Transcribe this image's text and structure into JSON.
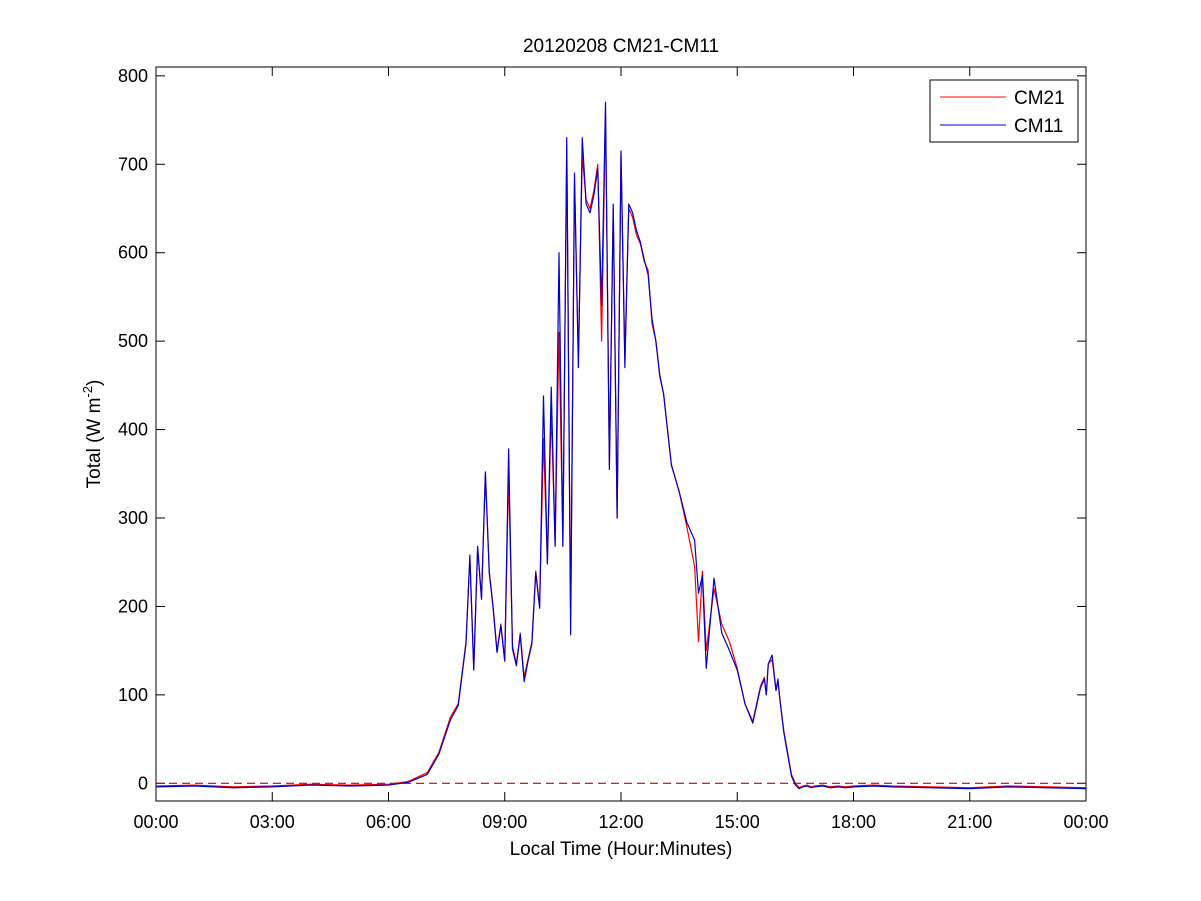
{
  "chart_data": {
    "type": "line",
    "title": "20120208 CM21-CM11",
    "xlabel": "Local Time (Hour:Minutes)",
    "ylabel": "Total (W m",
    "ylabel_sup": "-2",
    "ylabel_end": ")",
    "x_unit": "hours",
    "xlim": [
      0,
      24
    ],
    "ylim": [
      -20,
      810
    ],
    "grid": false,
    "legend_position": "top-right",
    "x_ticks": [
      {
        "value": 0,
        "label": "00:00"
      },
      {
        "value": 3,
        "label": "03:00"
      },
      {
        "value": 6,
        "label": "06:00"
      },
      {
        "value": 9,
        "label": "09:00"
      },
      {
        "value": 12,
        "label": "12:00"
      },
      {
        "value": 15,
        "label": "15:00"
      },
      {
        "value": 18,
        "label": "18:00"
      },
      {
        "value": 21,
        "label": "21:00"
      },
      {
        "value": 24,
        "label": "00:00"
      }
    ],
    "y_ticks": [
      {
        "value": 0,
        "label": "0"
      },
      {
        "value": 100,
        "label": "100"
      },
      {
        "value": 200,
        "label": "200"
      },
      {
        "value": 300,
        "label": "300"
      },
      {
        "value": 400,
        "label": "400"
      },
      {
        "value": 500,
        "label": "500"
      },
      {
        "value": 600,
        "label": "600"
      },
      {
        "value": 700,
        "label": "700"
      },
      {
        "value": 800,
        "label": "800"
      }
    ],
    "reference_line": {
      "y": 0,
      "color": "#cc0000",
      "style": "dashed"
    },
    "series": [
      {
        "name": "CM21",
        "color": "#ff0000",
        "x": [
          0,
          1,
          2,
          3,
          4,
          5,
          6,
          6.5,
          7,
          7.3,
          7.6,
          7.8,
          8.0,
          8.1,
          8.2,
          8.3,
          8.4,
          8.5,
          8.6,
          8.7,
          8.8,
          8.9,
          9.0,
          9.1,
          9.2,
          9.3,
          9.4,
          9.5,
          9.6,
          9.7,
          9.8,
          9.9,
          10.0,
          10.1,
          10.2,
          10.3,
          10.4,
          10.5,
          10.6,
          10.7,
          10.8,
          10.9,
          11.0,
          11.1,
          11.2,
          11.3,
          11.4,
          11.5,
          11.6,
          11.7,
          11.8,
          11.9,
          12.0,
          12.1,
          12.2,
          12.3,
          12.4,
          12.5,
          12.6,
          12.7,
          12.8,
          12.9,
          13.0,
          13.1,
          13.2,
          13.3,
          13.5,
          13.7,
          13.9,
          14.0,
          14.1,
          14.2,
          14.4,
          14.6,
          14.8,
          15.0,
          15.2,
          15.4,
          15.6,
          15.7,
          15.75,
          15.8,
          15.9,
          16.0,
          16.05,
          16.1,
          16.2,
          16.3,
          16.4,
          16.5,
          16.6,
          16.7,
          16.8,
          16.9,
          17.0,
          17.2,
          17.4,
          17.6,
          17.8,
          18.0,
          18.5,
          19,
          20,
          21,
          22,
          23,
          24
        ],
        "values": [
          -3,
          -2,
          -4,
          -3,
          -1,
          -2,
          -1,
          2,
          12,
          35,
          75,
          90,
          160,
          255,
          130,
          265,
          210,
          350,
          240,
          200,
          150,
          180,
          140,
          350,
          155,
          135,
          170,
          120,
          140,
          160,
          240,
          200,
          390,
          250,
          420,
          270,
          510,
          270,
          720,
          190,
          680,
          480,
          710,
          660,
          650,
          670,
          700,
          500,
          760,
          360,
          650,
          300,
          710,
          480,
          650,
          640,
          620,
          610,
          590,
          580,
          520,
          500,
          460,
          440,
          400,
          360,
          330,
          290,
          245,
          160,
          240,
          150,
          220,
          180,
          160,
          130,
          90,
          70,
          110,
          120,
          100,
          135,
          140,
          105,
          115,
          95,
          60,
          35,
          10,
          0,
          -5,
          -3,
          -2,
          -4,
          -3,
          -2,
          -4,
          -3,
          -4,
          -3,
          -2,
          -3,
          -4,
          -5,
          -3,
          -4,
          -5
        ]
      },
      {
        "name": "CM11",
        "color": "#0000cc",
        "x": [
          0,
          1,
          2,
          3,
          4,
          5,
          6,
          6.5,
          7,
          7.3,
          7.6,
          7.8,
          8.0,
          8.1,
          8.2,
          8.3,
          8.4,
          8.5,
          8.6,
          8.7,
          8.8,
          8.9,
          9.0,
          9.1,
          9.2,
          9.3,
          9.4,
          9.5,
          9.6,
          9.7,
          9.8,
          9.9,
          10.0,
          10.1,
          10.2,
          10.3,
          10.4,
          10.5,
          10.6,
          10.7,
          10.8,
          10.9,
          11.0,
          11.1,
          11.2,
          11.3,
          11.4,
          11.5,
          11.6,
          11.7,
          11.8,
          11.9,
          12.0,
          12.1,
          12.2,
          12.3,
          12.4,
          12.5,
          12.6,
          12.7,
          12.8,
          12.9,
          13.0,
          13.1,
          13.2,
          13.3,
          13.5,
          13.7,
          13.9,
          14.0,
          14.1,
          14.2,
          14.4,
          14.6,
          14.8,
          15.0,
          15.2,
          15.4,
          15.6,
          15.7,
          15.75,
          15.8,
          15.9,
          16.0,
          16.05,
          16.1,
          16.2,
          16.3,
          16.4,
          16.5,
          16.6,
          16.7,
          16.8,
          16.9,
          17.0,
          17.2,
          17.4,
          17.6,
          17.8,
          18.0,
          18.5,
          19,
          20,
          21,
          22,
          23,
          24
        ],
        "values": [
          -4,
          -3,
          -5,
          -4,
          -2,
          -3,
          -2,
          1,
          10,
          33,
          72,
          88,
          158,
          258,
          128,
          268,
          208,
          352,
          238,
          198,
          148,
          178,
          138,
          378,
          152,
          133,
          168,
          115,
          138,
          158,
          238,
          198,
          438,
          248,
          448,
          268,
          600,
          268,
          730,
          168,
          690,
          470,
          730,
          655,
          645,
          665,
          695,
          540,
          770,
          355,
          655,
          300,
          715,
          470,
          655,
          645,
          625,
          612,
          592,
          575,
          525,
          500,
          462,
          440,
          400,
          360,
          330,
          295,
          275,
          215,
          235,
          130,
          232,
          170,
          150,
          128,
          90,
          68,
          108,
          118,
          100,
          135,
          145,
          105,
          118,
          95,
          58,
          33,
          8,
          -2,
          -6,
          -4,
          -3,
          -5,
          -4,
          -3,
          -5,
          -4,
          -5,
          -4,
          -3,
          -4,
          -5,
          -6,
          -4,
          -5,
          -6
        ]
      }
    ]
  }
}
